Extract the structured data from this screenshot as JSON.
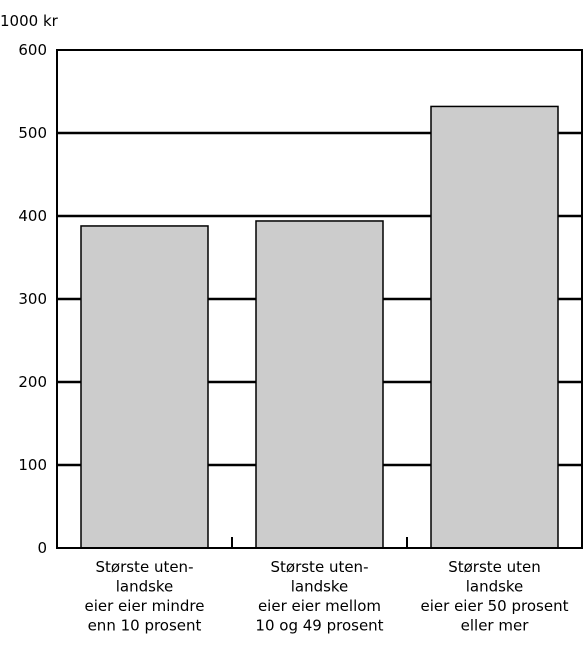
{
  "chart_data": {
    "type": "bar",
    "unit_label": "1000 kr",
    "categories": [
      [
        "Største uten-",
        "landske",
        "eier eier mindre",
        "enn 10 prosent"
      ],
      [
        "Største uten-",
        "landske",
        "eier eier mellom",
        "10 og 49 prosent"
      ],
      [
        "Største uten",
        "landske",
        "eier eier 50 prosent",
        "eller mer"
      ]
    ],
    "values": [
      388,
      394,
      532
    ],
    "ylim": [
      0,
      600
    ],
    "yticks": [
      0,
      100,
      200,
      300,
      400,
      500,
      600
    ],
    "ytick_labels": [
      "0",
      "100",
      "200",
      "300",
      "400",
      "500",
      "600"
    ],
    "grid": true,
    "bar_color": "#cccccc",
    "title": "",
    "xlabel": "",
    "ylabel": ""
  }
}
